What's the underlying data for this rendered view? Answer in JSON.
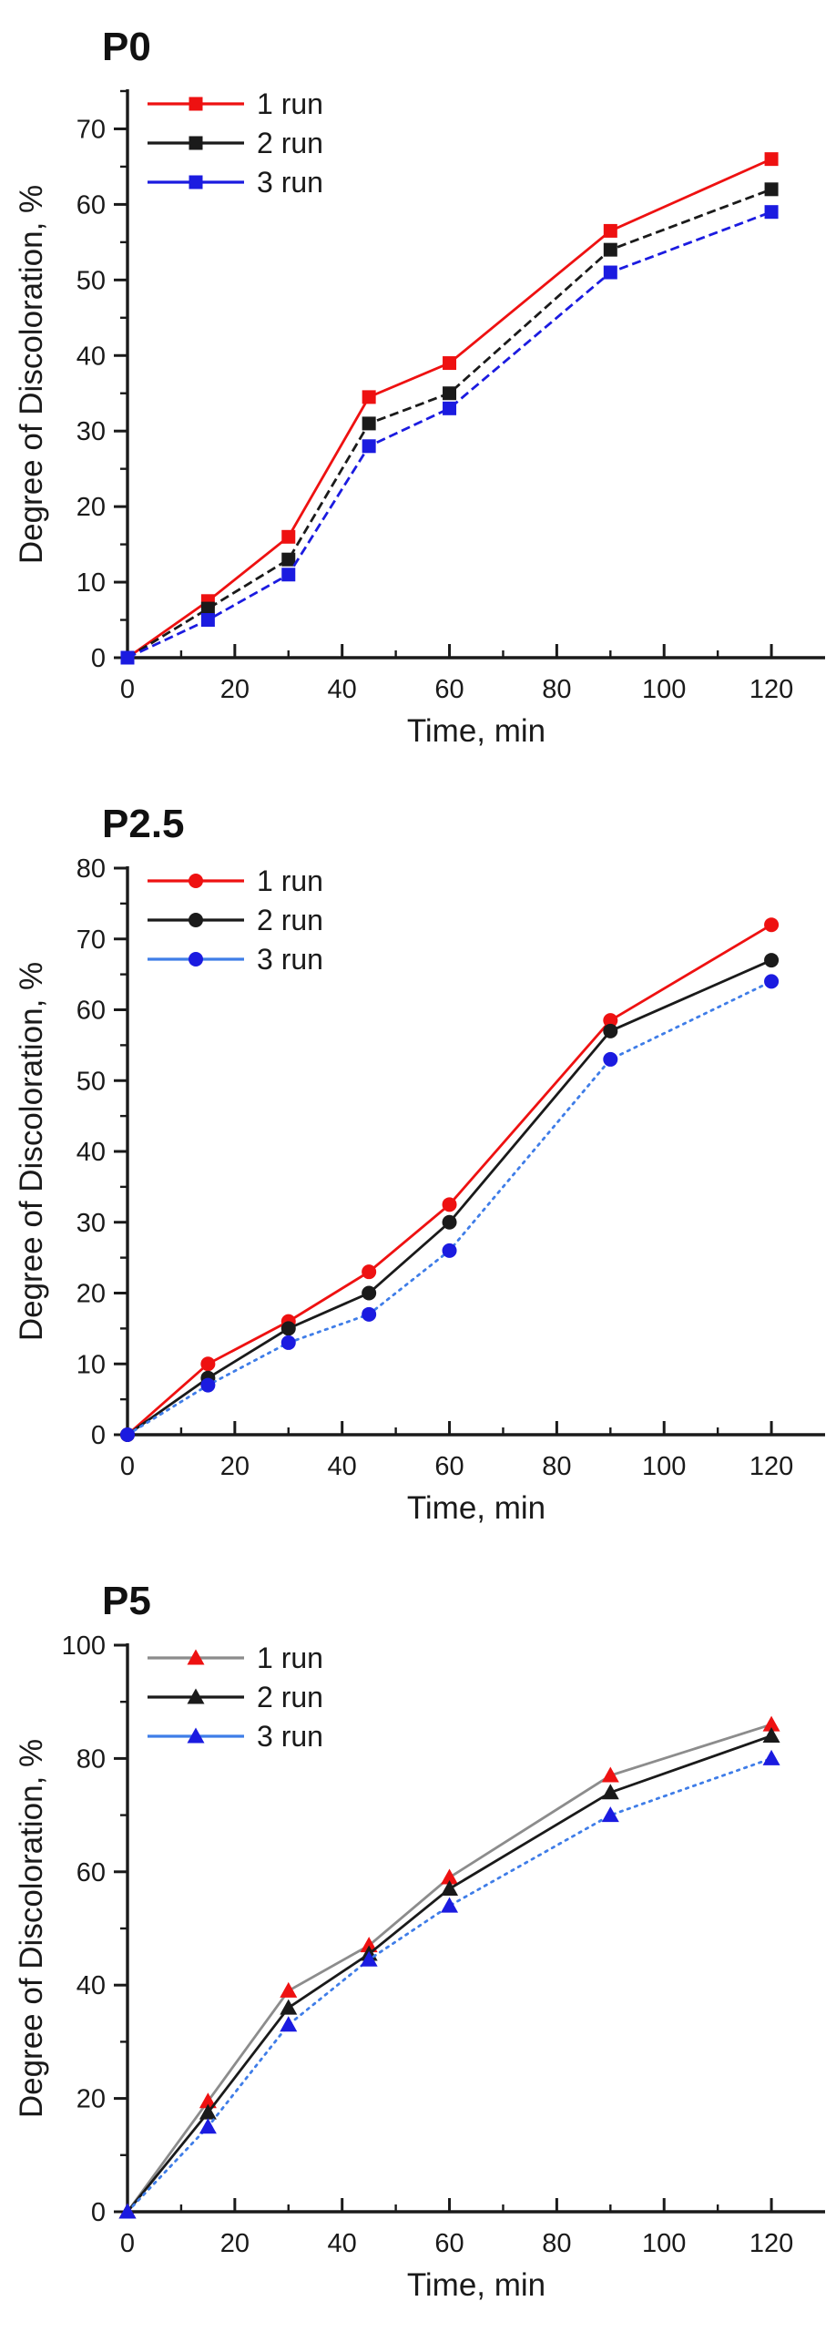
{
  "figure": {
    "background": "#ffffff",
    "axis_color": "#1a1a1a",
    "text_color": "#1a1a1a"
  },
  "chart_data": [
    {
      "type": "line",
      "title": "P0",
      "xlabel": "Time, min",
      "ylabel": "Degree of Discoloration, %",
      "marker_shape": "square",
      "legend_position": "top-left",
      "grid": false,
      "x": [
        0,
        15,
        30,
        45,
        60,
        90,
        120
      ],
      "xlim": [
        0,
        130
      ],
      "ylim": [
        0,
        75
      ],
      "x_major_ticks": [
        0,
        20,
        40,
        60,
        80,
        100,
        120
      ],
      "x_minor_step": 10,
      "y_major_ticks": [
        0,
        10,
        20,
        30,
        40,
        50,
        60,
        70
      ],
      "y_major_step": 10,
      "y_minor_step": 5,
      "series": [
        {
          "name": "1 run",
          "values": [
            0,
            7.5,
            16,
            34.5,
            39,
            56.5,
            66
          ],
          "marker_color": "#ee1111",
          "line_color": "#ee1111",
          "line_style": "solid"
        },
        {
          "name": "2 run",
          "values": [
            0,
            6.5,
            13,
            31,
            35,
            54,
            62
          ],
          "marker_color": "#1a1a1a",
          "line_color": "#1a1a1a",
          "line_style": "dash"
        },
        {
          "name": "3 run",
          "values": [
            0,
            5,
            11,
            28,
            33,
            51,
            59
          ],
          "marker_color": "#1b1be0",
          "line_color": "#1b1be0",
          "line_style": "dash"
        }
      ]
    },
    {
      "type": "line",
      "title": "P2.5",
      "xlabel": "Time, min",
      "ylabel": "Degree of Discoloration, %",
      "marker_shape": "circle",
      "legend_position": "top-left",
      "grid": false,
      "x": [
        0,
        15,
        30,
        45,
        60,
        90,
        120
      ],
      "xlim": [
        0,
        130
      ],
      "ylim": [
        0,
        80
      ],
      "x_major_ticks": [
        0,
        20,
        40,
        60,
        80,
        100,
        120
      ],
      "x_minor_step": 10,
      "y_major_ticks": [
        0,
        10,
        20,
        30,
        40,
        50,
        60,
        70,
        80
      ],
      "y_major_step": 10,
      "y_minor_step": 5,
      "series": [
        {
          "name": "1 run",
          "values": [
            0,
            10,
            16,
            23,
            32.5,
            58.5,
            72
          ],
          "marker_color": "#ee1111",
          "line_color": "#ee1111",
          "line_style": "solid"
        },
        {
          "name": "2 run",
          "values": [
            0,
            8,
            15,
            20,
            30,
            57,
            67
          ],
          "marker_color": "#1a1a1a",
          "line_color": "#1a1a1a",
          "line_style": "solid"
        },
        {
          "name": "3 run",
          "values": [
            0,
            7,
            13,
            17,
            26,
            53,
            64
          ],
          "marker_color": "#1b1be0",
          "line_color": "#3f7de8",
          "line_style": "dot"
        }
      ]
    },
    {
      "type": "line",
      "title": "P5",
      "xlabel": "Time, min",
      "ylabel": "Degree of Discoloration, %",
      "marker_shape": "triangle",
      "legend_position": "top-left",
      "grid": false,
      "x": [
        0,
        15,
        30,
        45,
        60,
        90,
        120
      ],
      "xlim": [
        0,
        130
      ],
      "ylim": [
        0,
        100
      ],
      "x_major_ticks": [
        0,
        20,
        40,
        60,
        80,
        100,
        120
      ],
      "x_minor_step": 10,
      "y_major_ticks": [
        0,
        20,
        40,
        60,
        80,
        100
      ],
      "y_major_step": 20,
      "y_minor_step": 10,
      "series": [
        {
          "name": "1 run",
          "values": [
            0,
            19.5,
            39,
            47,
            59,
            77,
            86
          ],
          "marker_color": "#ee1111",
          "line_color": "#8c8c8c",
          "line_style": "solid"
        },
        {
          "name": "2 run",
          "values": [
            0,
            17.5,
            36,
            45.5,
            57,
            74,
            84
          ],
          "marker_color": "#1a1a1a",
          "line_color": "#1a1a1a",
          "line_style": "solid"
        },
        {
          "name": "3 run",
          "values": [
            0,
            15,
            33,
            44.5,
            54,
            70,
            80
          ],
          "marker_color": "#1b1be0",
          "line_color": "#3f7de8",
          "line_style": "dot"
        }
      ]
    }
  ]
}
